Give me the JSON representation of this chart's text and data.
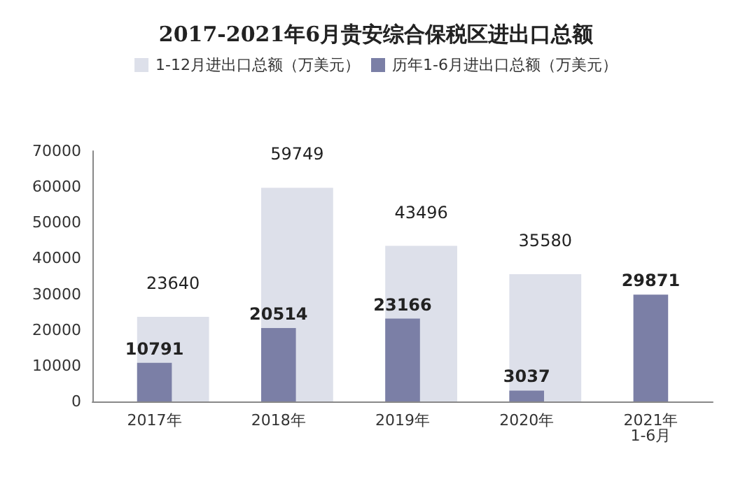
{
  "chart_data": {
    "type": "bar",
    "title": "2017-2021年6月贵安综合保税区进出口总额",
    "categories": [
      "2017年",
      "2018年",
      "2019年",
      "2020年",
      "2021年\n1-6月"
    ],
    "series": [
      {
        "name": "1-12月进出口总额（万美元）",
        "color": "#dde0ea",
        "values": [
          23640,
          59749,
          43496,
          35580,
          null
        ]
      },
      {
        "name": "历年1-6月进出口总额（万美元）",
        "color": "#7b7fa6",
        "values": [
          10791,
          20514,
          23166,
          3037,
          29871
        ]
      }
    ],
    "ylim": [
      0,
      70000
    ],
    "yticks": [
      0,
      10000,
      20000,
      30000,
      40000,
      50000,
      60000,
      70000
    ],
    "grid": false,
    "legend": "top",
    "data_labels": true
  }
}
